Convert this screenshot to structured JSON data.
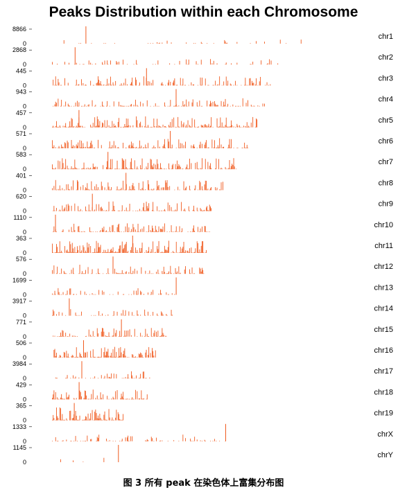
{
  "chart_data": {
    "type": "bar",
    "title": "Peaks Distribution within each Chromosome",
    "bar_color": "#f05a1e",
    "tracks": [
      {
        "chr": "chr1",
        "max": 8866,
        "min": 0,
        "end": 0.92,
        "density": 0.1,
        "spike": 0.13
      },
      {
        "chr": "chr2",
        "max": 2868,
        "min": 0,
        "end": 0.81,
        "density": 0.2,
        "spike": 0.1
      },
      {
        "chr": "chr3",
        "max": 445,
        "min": 0,
        "end": 0.78,
        "density": 0.55,
        "spike": 0.43
      },
      {
        "chr": "chr4",
        "max": 943,
        "min": 0,
        "end": 0.76,
        "density": 0.45,
        "spike": 0.58
      },
      {
        "chr": "chr5",
        "max": 457,
        "min": 0,
        "end": 0.73,
        "density": 0.7,
        "spike": 0.13
      },
      {
        "chr": "chr6",
        "max": 571,
        "min": 0,
        "end": 0.7,
        "density": 0.6,
        "spike": 0.6
      },
      {
        "chr": "chr7",
        "max": 583,
        "min": 0,
        "end": 0.66,
        "density": 0.7,
        "spike": 0.3
      },
      {
        "chr": "chr8",
        "max": 401,
        "min": 0,
        "end": 0.61,
        "density": 0.6,
        "spike": 0.43
      },
      {
        "chr": "chr9",
        "max": 620,
        "min": 0,
        "end": 0.57,
        "density": 0.6,
        "spike": 0.25
      },
      {
        "chr": "chr10",
        "max": 1110,
        "min": 0,
        "end": 0.56,
        "density": 0.5,
        "spike": 0.02
      },
      {
        "chr": "chr11",
        "max": 363,
        "min": 0,
        "end": 0.55,
        "density": 0.8,
        "spike": 0.52
      },
      {
        "chr": "chr12",
        "max": 576,
        "min": 0,
        "end": 0.54,
        "density": 0.55,
        "spike": 0.4
      },
      {
        "chr": "chr13",
        "max": 1699,
        "min": 0,
        "end": 0.45,
        "density": 0.35,
        "spike": 0.98
      },
      {
        "chr": "chr14",
        "max": 3917,
        "min": 0,
        "end": 0.43,
        "density": 0.3,
        "spike": 0.14
      },
      {
        "chr": "chr15",
        "max": 771,
        "min": 0,
        "end": 0.41,
        "density": 0.5,
        "spike": 0.6
      },
      {
        "chr": "chr16",
        "max": 506,
        "min": 0,
        "end": 0.37,
        "density": 0.7,
        "spike": 0.3
      },
      {
        "chr": "chr17",
        "max": 3984,
        "min": 0,
        "end": 0.35,
        "density": 0.35,
        "spike": 0.3
      },
      {
        "chr": "chr18",
        "max": 429,
        "min": 0,
        "end": 0.34,
        "density": 0.6,
        "spike": 0.28
      },
      {
        "chr": "chr19",
        "max": 365,
        "min": 0,
        "end": 0.26,
        "density": 0.85,
        "spike": 0.3
      },
      {
        "chr": "chrX",
        "max": 1333,
        "min": 0,
        "end": 0.63,
        "density": 0.3,
        "spike": 0.98
      },
      {
        "chr": "chrY",
        "max": 1145,
        "min": 0,
        "end": 0.24,
        "density": 0.1,
        "spike": 0.98
      }
    ]
  },
  "caption": "图 3 所有 peak 在染色体上富集分布图"
}
